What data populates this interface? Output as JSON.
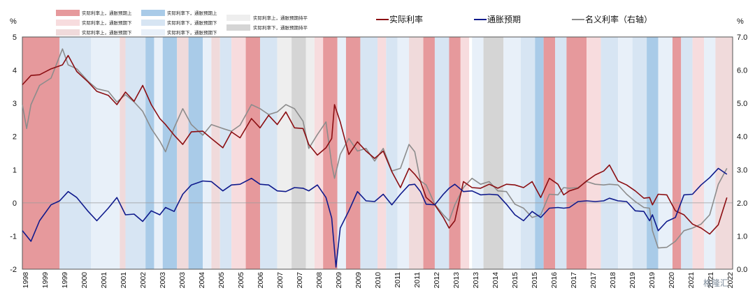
{
  "chart_data": {
    "type": "line",
    "left_unit": "%",
    "right_unit": "%",
    "ylim_left": [
      -2,
      5
    ],
    "ylim_right": [
      0.0,
      7.0
    ],
    "xlim": [
      1998.0,
      2022.8
    ],
    "left_ticks": [
      "-2",
      "-1",
      "0",
      "1",
      "2",
      "3",
      "4",
      "5"
    ],
    "right_ticks": [
      "0.0",
      "1.0",
      "2.0",
      "3.0",
      "4.0",
      "5.0",
      "6.0",
      "7.0"
    ],
    "x_ticks": [
      "1998",
      "1999",
      "1999",
      "2000",
      "2001",
      "2001",
      "2002",
      "2003",
      "2003",
      "2004",
      "2005",
      "2005",
      "2006",
      "2007",
      "2007",
      "2008",
      "2009",
      "2009",
      "2010",
      "2011",
      "2011",
      "2012",
      "2013",
      "2013",
      "2014",
      "2015",
      "2015",
      "2016",
      "2017",
      "2017",
      "2018",
      "2019",
      "2019",
      "2020",
      "2021",
      "2021",
      "2022"
    ],
    "legend_regimes": [
      {
        "label": "实际利率上，通胀预期上",
        "color": "#e6999c"
      },
      {
        "label": "实际利率上，通胀预期下",
        "color": "#f7dcde"
      },
      {
        "label": "实际利率下，通胀预期上",
        "color": "#a9cbe8"
      },
      {
        "label": "实际利率下，通胀预期下",
        "color": "#d7e5f3"
      },
      {
        "label": "实际利率下，通胀预期下",
        "color": "#e8f0f9"
      },
      {
        "label": "实际利率上，通胀预期下",
        "color": "#f0dadb"
      },
      {
        "label": "实际利率上，通胀预期持平",
        "color": "#eeeeee"
      },
      {
        "label": "实际利率下，通胀预期持平",
        "color": "#d5d5d5"
      }
    ],
    "series": [
      {
        "name": "实际利率",
        "axis": "left",
        "color": "#8b0e12",
        "x": [
          1998.0,
          1998.3,
          1998.6,
          1999.0,
          1999.4,
          1999.6,
          1999.9,
          2000.3,
          2000.6,
          2001.0,
          2001.3,
          2001.6,
          2001.9,
          2002.2,
          2002.5,
          2002.8,
          2003.0,
          2003.3,
          2003.6,
          2003.9,
          2004.3,
          2004.6,
          2005.0,
          2005.3,
          2005.6,
          2006.0,
          2006.3,
          2006.6,
          2006.9,
          2007.2,
          2007.5,
          2007.8,
          2008.0,
          2008.3,
          2008.6,
          2008.8,
          2008.9,
          2009.1,
          2009.4,
          2009.7,
          2010.0,
          2010.3,
          2010.6,
          2010.9,
          2011.2,
          2011.5,
          2011.7,
          2011.9,
          2012.1,
          2012.4,
          2012.7,
          2012.9,
          2013.1,
          2013.4,
          2013.7,
          2014.0,
          2014.3,
          2014.6,
          2014.9,
          2015.2,
          2015.5,
          2015.8,
          2016.1,
          2016.4,
          2016.7,
          2016.9,
          2017.1,
          2017.4,
          2017.7,
          2018.0,
          2018.3,
          2018.5,
          2018.8,
          2019.1,
          2019.4,
          2019.7,
          2019.9,
          2020.0,
          2020.2,
          2020.5,
          2020.8,
          2021.1,
          2021.4,
          2021.7,
          2022.0,
          2022.3,
          2022.6
        ],
        "y": [
          3.6,
          3.8,
          3.9,
          4.0,
          4.2,
          4.4,
          4.0,
          3.6,
          3.4,
          3.2,
          3.0,
          3.3,
          3.1,
          3.5,
          3.0,
          2.5,
          2.4,
          2.0,
          1.8,
          2.1,
          2.2,
          1.9,
          1.7,
          2.1,
          2.0,
          2.5,
          2.3,
          2.6,
          2.4,
          2.7,
          2.3,
          2.2,
          1.8,
          1.4,
          1.7,
          1.9,
          3.0,
          2.4,
          1.5,
          1.8,
          1.6,
          1.3,
          1.6,
          0.9,
          0.5,
          1.0,
          0.9,
          0.6,
          0.2,
          -0.1,
          -0.4,
          -0.8,
          -0.5,
          0.6,
          0.5,
          0.4,
          0.6,
          0.4,
          0.6,
          0.5,
          0.5,
          0.6,
          0.2,
          0.7,
          0.6,
          0.2,
          0.4,
          0.4,
          0.7,
          0.8,
          1.0,
          1.1,
          0.7,
          0.5,
          0.4,
          0.1,
          0.2,
          -0.1,
          0.3,
          0.2,
          -0.2,
          -0.4,
          -0.6,
          -0.8,
          -0.9,
          -0.7,
          0.2
        ]
      },
      {
        "name": "通胀预期",
        "axis": "left",
        "color": "#0f1a8c",
        "x": [
          1998.0,
          1998.3,
          1998.6,
          1999.0,
          1999.3,
          1999.6,
          1999.9,
          2000.3,
          2000.6,
          2001.0,
          2001.3,
          2001.6,
          2001.9,
          2002.2,
          2002.5,
          2002.8,
          2003.0,
          2003.3,
          2003.6,
          2003.9,
          2004.3,
          2004.6,
          2005.0,
          2005.3,
          2005.6,
          2006.0,
          2006.3,
          2006.6,
          2006.9,
          2007.2,
          2007.5,
          2007.8,
          2008.0,
          2008.3,
          2008.6,
          2008.8,
          2008.95,
          2009.1,
          2009.4,
          2009.7,
          2010.0,
          2010.3,
          2010.6,
          2010.9,
          2011.2,
          2011.5,
          2011.7,
          2011.9,
          2012.1,
          2012.4,
          2012.7,
          2012.9,
          2013.1,
          2013.4,
          2013.7,
          2014.0,
          2014.3,
          2014.6,
          2014.9,
          2015.2,
          2015.5,
          2015.8,
          2016.1,
          2016.4,
          2016.7,
          2016.9,
          2017.1,
          2017.4,
          2017.7,
          2018.0,
          2018.3,
          2018.5,
          2018.8,
          2019.1,
          2019.4,
          2019.7,
          2019.9,
          2020.0,
          2020.2,
          2020.5,
          2020.8,
          2021.1,
          2021.4,
          2021.7,
          2022.0,
          2022.3,
          2022.6
        ],
        "y": [
          -0.8,
          -1.2,
          -0.5,
          -0.1,
          0.1,
          0.3,
          0.2,
          -0.3,
          -0.5,
          -0.2,
          0.2,
          -0.4,
          -0.3,
          -0.6,
          -0.2,
          -0.4,
          -0.1,
          -0.3,
          0.3,
          0.5,
          0.7,
          0.6,
          0.4,
          0.5,
          0.6,
          0.7,
          0.6,
          0.5,
          0.4,
          0.3,
          0.5,
          0.4,
          0.4,
          0.5,
          0.2,
          -0.5,
          -1.9,
          -0.8,
          -0.2,
          0.3,
          0.1,
          0.0,
          0.3,
          -0.1,
          0.3,
          0.5,
          0.6,
          0.3,
          0.0,
          -0.1,
          0.3,
          0.4,
          0.6,
          0.3,
          0.4,
          0.2,
          0.3,
          0.2,
          0.0,
          -0.4,
          -0.5,
          -0.3,
          -0.4,
          -0.2,
          -0.1,
          -0.2,
          -0.1,
          0.0,
          0.1,
          0.0,
          0.1,
          0.1,
          0.1,
          0.0,
          -0.2,
          -0.3,
          -0.5,
          -0.4,
          -0.8,
          -0.6,
          -0.4,
          0.2,
          0.3,
          0.5,
          0.8,
          1.0,
          0.9
        ]
      },
      {
        "name": "名义利率（右轴）",
        "axis": "right",
        "color": "#8c8c8c",
        "x": [
          1998.0,
          1998.15,
          1998.3,
          1998.6,
          1999.0,
          1999.4,
          1999.6,
          1999.9,
          2000.3,
          2000.6,
          2001.0,
          2001.3,
          2001.6,
          2001.9,
          2002.2,
          2002.5,
          2002.8,
          2003.0,
          2003.3,
          2003.6,
          2003.9,
          2004.3,
          2004.6,
          2005.0,
          2005.3,
          2005.6,
          2006.0,
          2006.3,
          2006.6,
          2006.9,
          2007.2,
          2007.5,
          2007.8,
          2008.0,
          2008.3,
          2008.6,
          2008.8,
          2008.9,
          2009.1,
          2009.4,
          2009.7,
          2010.0,
          2010.3,
          2010.6,
          2010.9,
          2011.2,
          2011.5,
          2011.7,
          2011.9,
          2012.1,
          2012.4,
          2012.7,
          2012.9,
          2013.1,
          2013.4,
          2013.7,
          2014.0,
          2014.3,
          2014.6,
          2014.9,
          2015.2,
          2015.5,
          2015.8,
          2016.1,
          2016.4,
          2016.7,
          2016.9,
          2017.1,
          2017.4,
          2017.7,
          2018.0,
          2018.3,
          2018.5,
          2018.8,
          2019.1,
          2019.4,
          2019.7,
          2019.9,
          2020.0,
          2020.2,
          2020.5,
          2020.8,
          2021.1,
          2021.4,
          2021.7,
          2022.0,
          2022.3,
          2022.6
        ],
        "y": [
          5.0,
          4.2,
          5.0,
          5.5,
          5.8,
          6.6,
          6.2,
          6.0,
          5.7,
          5.4,
          5.4,
          5.0,
          5.3,
          5.0,
          4.8,
          4.2,
          3.9,
          3.5,
          4.3,
          4.8,
          4.4,
          4.0,
          4.4,
          4.2,
          4.2,
          4.3,
          5.0,
          4.8,
          4.7,
          4.7,
          5.0,
          4.8,
          4.5,
          3.6,
          4.1,
          4.4,
          3.2,
          2.7,
          3.5,
          3.9,
          3.6,
          3.6,
          3.3,
          3.6,
          3.0,
          3.0,
          3.8,
          3.5,
          2.7,
          2.5,
          2.0,
          1.6,
          1.5,
          1.9,
          2.5,
          2.7,
          2.6,
          2.6,
          2.4,
          2.3,
          2.0,
          1.8,
          1.6,
          1.6,
          2.3,
          2.2,
          2.5,
          2.4,
          2.5,
          2.6,
          2.6,
          2.5,
          2.6,
          2.5,
          2.3,
          2.0,
          1.9,
          1.8,
          1.2,
          0.6,
          0.7,
          0.8,
          1.2,
          1.2,
          1.4,
          1.6,
          2.6,
          3.0
        ]
      }
    ],
    "regimes": [
      {
        "start": 1998.0,
        "end": 1999.3,
        "c": 0
      },
      {
        "start": 1999.3,
        "end": 2000.4,
        "c": 3
      },
      {
        "start": 2000.4,
        "end": 2001.4,
        "c": 4
      },
      {
        "start": 2001.4,
        "end": 2001.6,
        "c": 5
      },
      {
        "start": 2001.6,
        "end": 2002.3,
        "c": 3
      },
      {
        "start": 2002.3,
        "end": 2002.6,
        "c": 2
      },
      {
        "start": 2002.6,
        "end": 2002.9,
        "c": 4
      },
      {
        "start": 2002.9,
        "end": 2003.4,
        "c": 2
      },
      {
        "start": 2003.4,
        "end": 2003.8,
        "c": 5
      },
      {
        "start": 2003.8,
        "end": 2004.3,
        "c": 2
      },
      {
        "start": 2004.3,
        "end": 2004.6,
        "c": 4
      },
      {
        "start": 2004.6,
        "end": 2004.9,
        "c": 5
      },
      {
        "start": 2004.9,
        "end": 2005.3,
        "c": 3
      },
      {
        "start": 2005.3,
        "end": 2005.8,
        "c": 1
      },
      {
        "start": 2005.8,
        "end": 2006.3,
        "c": 0
      },
      {
        "start": 2006.3,
        "end": 2006.9,
        "c": 3
      },
      {
        "start": 2006.9,
        "end": 2007.4,
        "c": 6
      },
      {
        "start": 2007.4,
        "end": 2007.9,
        "c": 7
      },
      {
        "start": 2007.9,
        "end": 2008.2,
        "c": 6
      },
      {
        "start": 2008.2,
        "end": 2008.5,
        "c": 1
      },
      {
        "start": 2008.5,
        "end": 2009.0,
        "c": 0
      },
      {
        "start": 2009.0,
        "end": 2009.3,
        "c": 4
      },
      {
        "start": 2009.3,
        "end": 2009.8,
        "c": 0
      },
      {
        "start": 2009.8,
        "end": 2010.4,
        "c": 3
      },
      {
        "start": 2010.4,
        "end": 2010.7,
        "c": 1
      },
      {
        "start": 2010.7,
        "end": 2011.1,
        "c": 3
      },
      {
        "start": 2011.1,
        "end": 2011.5,
        "c": 4
      },
      {
        "start": 2011.5,
        "end": 2012.0,
        "c": 5
      },
      {
        "start": 2012.0,
        "end": 2012.4,
        "c": 0
      },
      {
        "start": 2012.4,
        "end": 2012.9,
        "c": 3
      },
      {
        "start": 2012.9,
        "end": 2013.3,
        "c": 0
      },
      {
        "start": 2013.3,
        "end": 2013.6,
        "c": 1
      },
      {
        "start": 2013.7,
        "end": 2014.1,
        "c": 4
      },
      {
        "start": 2014.1,
        "end": 2014.8,
        "c": 7
      },
      {
        "start": 2014.8,
        "end": 2015.4,
        "c": 4
      },
      {
        "start": 2015.4,
        "end": 2015.9,
        "c": 3
      },
      {
        "start": 2015.9,
        "end": 2016.2,
        "c": 2
      },
      {
        "start": 2016.2,
        "end": 2016.6,
        "c": 0
      },
      {
        "start": 2016.6,
        "end": 2017.0,
        "c": 3
      },
      {
        "start": 2017.0,
        "end": 2017.7,
        "c": 0
      },
      {
        "start": 2017.7,
        "end": 2018.2,
        "c": 1
      },
      {
        "start": 2018.2,
        "end": 2018.8,
        "c": 3
      },
      {
        "start": 2018.8,
        "end": 2019.3,
        "c": 4
      },
      {
        "start": 2019.3,
        "end": 2019.8,
        "c": 3
      },
      {
        "start": 2019.8,
        "end": 2020.2,
        "c": 2
      },
      {
        "start": 2020.2,
        "end": 2020.7,
        "c": 4
      },
      {
        "start": 2020.7,
        "end": 2021.0,
        "c": 0
      },
      {
        "start": 2021.0,
        "end": 2021.4,
        "c": 3
      },
      {
        "start": 2021.4,
        "end": 2021.8,
        "c": 1
      },
      {
        "start": 2021.8,
        "end": 2022.2,
        "c": 4
      },
      {
        "start": 2022.2,
        "end": 2022.8,
        "c": 5
      }
    ]
  },
  "watermark": "格隆汇"
}
